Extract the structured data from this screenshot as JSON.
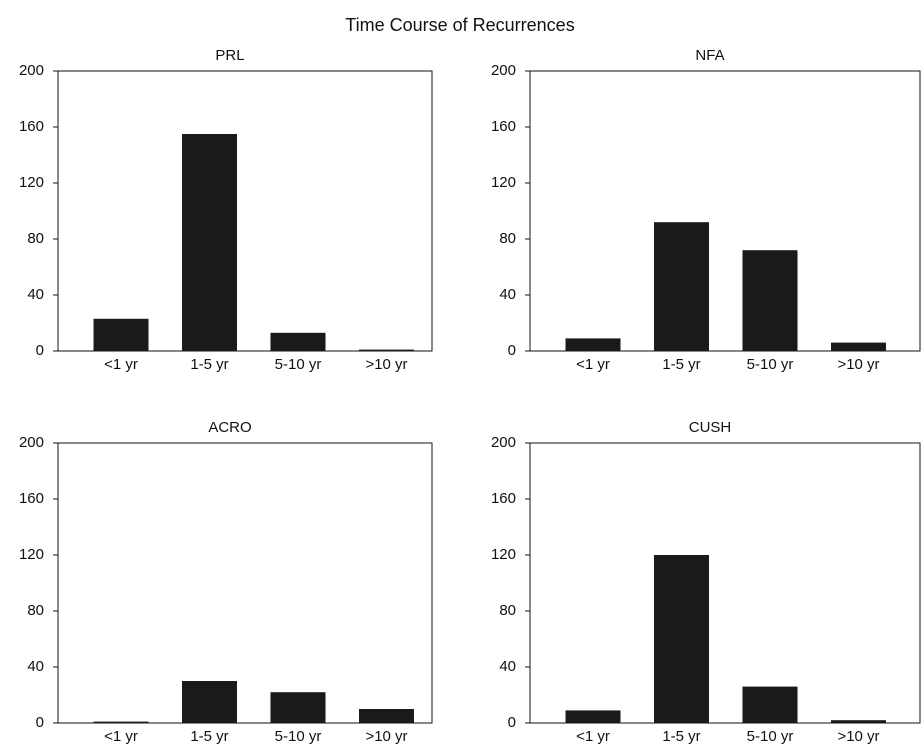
{
  "title": "Time Course of Recurrences",
  "chart_data": [
    {
      "type": "bar",
      "title": "PRL",
      "categories": [
        "<1 yr",
        "1-5 yr",
        "5-10 yr",
        ">10 yr"
      ],
      "values": [
        23,
        155,
        13,
        1
      ],
      "color": "#1a1a1a",
      "ylim": [
        0,
        200
      ],
      "yticks": [
        0,
        40,
        80,
        120,
        160,
        200
      ]
    },
    {
      "type": "bar",
      "title": "NFA",
      "categories": [
        "<1 yr",
        "1-5 yr",
        "5-10 yr",
        ">10 yr"
      ],
      "values": [
        9,
        92,
        72,
        6
      ],
      "color": "#1a1a1a",
      "ylim": [
        0,
        200
      ],
      "yticks": [
        0,
        40,
        80,
        120,
        160,
        200
      ]
    },
    {
      "type": "bar",
      "title": "ACRO",
      "categories": [
        "<1 yr",
        "1-5 yr",
        "5-10 yr",
        ">10 yr"
      ],
      "values": [
        1,
        30,
        22,
        10
      ],
      "color": "#1a1a1a",
      "ylim": [
        0,
        200
      ],
      "yticks": [
        0,
        40,
        80,
        120,
        160,
        200
      ]
    },
    {
      "type": "bar",
      "title": "CUSH",
      "categories": [
        "<1 yr",
        "1-5 yr",
        "5-10 yr",
        ">10 yr"
      ],
      "values": [
        9,
        120,
        26,
        2
      ],
      "color": "#1a1a1a",
      "ylim": [
        0,
        200
      ],
      "yticks": [
        0,
        40,
        80,
        120,
        160,
        200
      ]
    }
  ]
}
